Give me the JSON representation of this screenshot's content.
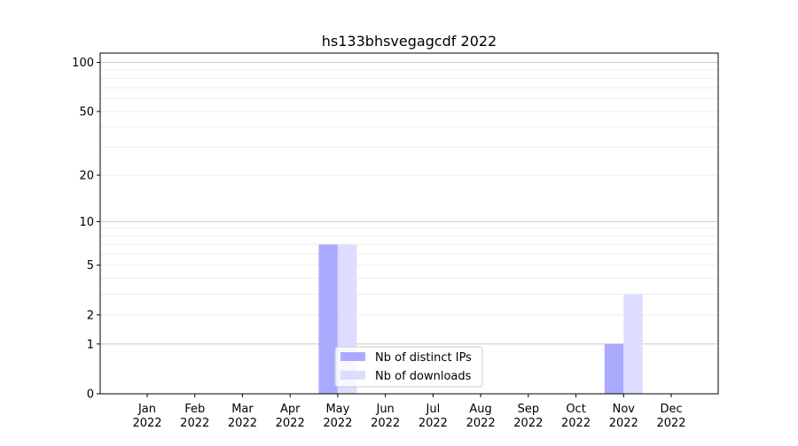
{
  "chart_data": {
    "type": "bar",
    "title": "hs133bhsvegagcdf 2022",
    "xlabel": "",
    "ylabel": "",
    "yscale": "log(1+y)",
    "ylim": [
      0,
      114
    ],
    "yticks": [
      0,
      1,
      2,
      5,
      10,
      20,
      50,
      100
    ],
    "categories": [
      "Jan\n2022",
      "Feb\n2022",
      "Mar\n2022",
      "Apr\n2022",
      "May\n2022",
      "Jun\n2022",
      "Jul\n2022",
      "Aug\n2022",
      "Sep\n2022",
      "Oct\n2022",
      "Nov\n2022",
      "Dec\n2022"
    ],
    "series": [
      {
        "name": "Nb of distinct IPs",
        "color": "#aaaaff",
        "values": [
          0,
          0,
          0,
          0,
          7,
          0,
          0,
          0,
          0,
          0,
          1,
          0
        ]
      },
      {
        "name": "Nb of downloads",
        "color": "#ddddff",
        "values": [
          0,
          0,
          0,
          0,
          7,
          0,
          0,
          0,
          0,
          0,
          3,
          0
        ]
      }
    ],
    "grid": true,
    "legend": "lower-center"
  }
}
